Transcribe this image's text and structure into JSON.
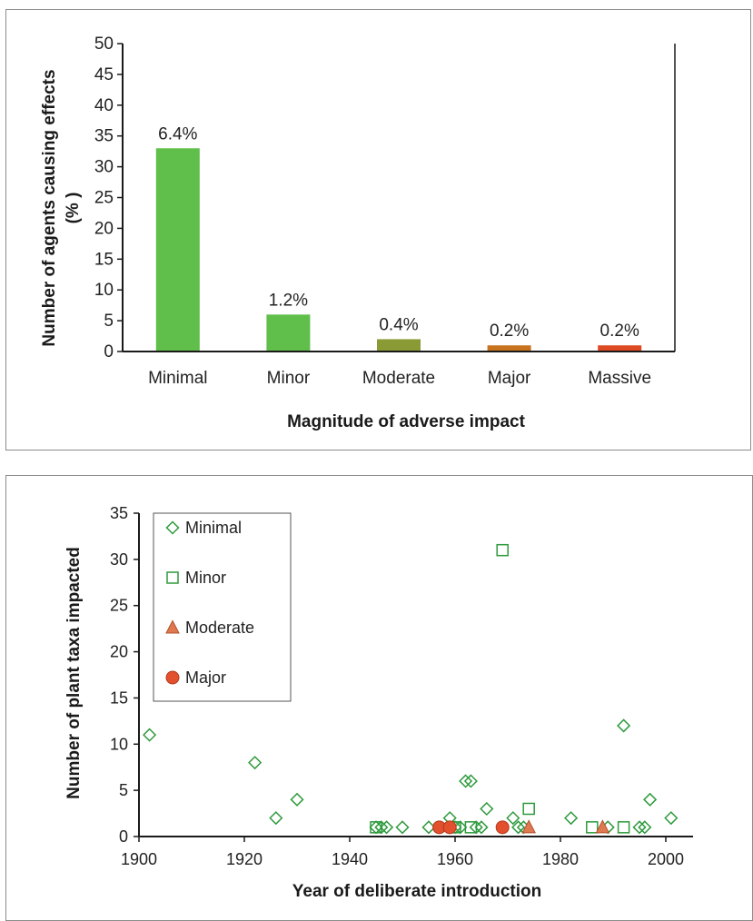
{
  "chart_data": [
    {
      "type": "bar",
      "categories": [
        "Minimal",
        "Minor",
        "Moderate",
        "Major",
        "Massive"
      ],
      "values": [
        33,
        6,
        2,
        1,
        1
      ],
      "data_labels": [
        "6.4%",
        "1.2%",
        "0.4%",
        "0.2%",
        "0.2%"
      ],
      "bar_colors": [
        "#5fbf4a",
        "#5fbf4a",
        "#8a9a35",
        "#c8741f",
        "#de4a23"
      ],
      "xlabel": "Magnitude of adverse impact",
      "ylabel_line1": "Number of agents causing effects",
      "ylabel_line2": "(% )",
      "ylim": [
        0,
        50
      ],
      "yticks": [
        0,
        5,
        10,
        15,
        20,
        25,
        30,
        35,
        40,
        45,
        50
      ],
      "grid": false,
      "legend": "none"
    },
    {
      "type": "scatter",
      "xlabel": "Year of deliberate introduction",
      "ylabel": "Number of plant taxa impacted",
      "xlim": [
        1900,
        2000
      ],
      "ylim": [
        0,
        35
      ],
      "xticks": [
        1900,
        1920,
        1940,
        1960,
        1980,
        2000
      ],
      "yticks": [
        0,
        5,
        10,
        15,
        20,
        25,
        30,
        35
      ],
      "grid": false,
      "legend": "top-left",
      "series": [
        {
          "name": "Minimal",
          "marker": "diamond-open",
          "color": "#2e9a3c",
          "points": [
            [
              1902,
              11
            ],
            [
              1922,
              8
            ],
            [
              1926,
              2
            ],
            [
              1930,
              4
            ],
            [
              1945,
              1
            ],
            [
              1946,
              1
            ],
            [
              1947,
              1
            ],
            [
              1950,
              1
            ],
            [
              1955,
              1
            ],
            [
              1959,
              2
            ],
            [
              1960,
              1
            ],
            [
              1961,
              1
            ],
            [
              1962,
              6
            ],
            [
              1963,
              6
            ],
            [
              1964,
              1
            ],
            [
              1965,
              1
            ],
            [
              1966,
              3
            ],
            [
              1971,
              2
            ],
            [
              1972,
              1
            ],
            [
              1973,
              1
            ],
            [
              1982,
              2
            ],
            [
              1989,
              1
            ],
            [
              1992,
              12
            ],
            [
              1995,
              1
            ],
            [
              1996,
              1
            ],
            [
              1997,
              4
            ],
            [
              2001,
              2
            ]
          ]
        },
        {
          "name": "Minor",
          "marker": "square-open",
          "color": "#2e9a3c",
          "points": [
            [
              1945,
              1
            ],
            [
              1960,
              1
            ],
            [
              1963,
              1
            ],
            [
              1969,
              31
            ],
            [
              1974,
              3
            ],
            [
              1986,
              1
            ],
            [
              1992,
              1
            ]
          ]
        },
        {
          "name": "Moderate",
          "marker": "triangle",
          "color": "#e07850",
          "points": [
            [
              1974,
              1
            ],
            [
              1988,
              1
            ]
          ]
        },
        {
          "name": "Major",
          "marker": "circle",
          "color": "#e2502e",
          "points": [
            [
              1957,
              1
            ],
            [
              1959,
              1
            ],
            [
              1969,
              1
            ]
          ]
        }
      ]
    }
  ]
}
